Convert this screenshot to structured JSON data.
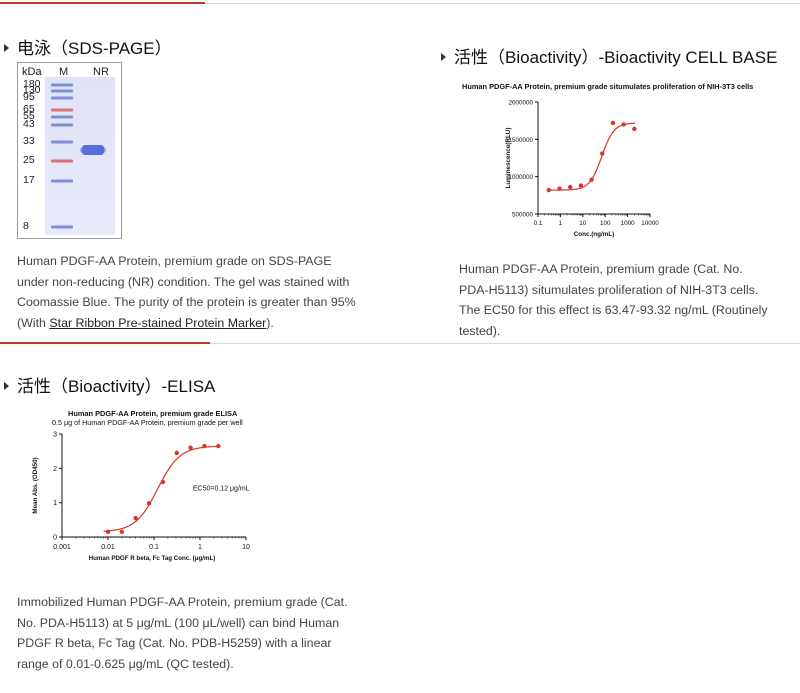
{
  "section1": {
    "title": "电泳（SDS-PAGE）",
    "gel": {
      "header_kda": "kDa",
      "lane_m": "M",
      "lane_nr": "NR",
      "markers": [
        "180",
        "130",
        "95",
        "65",
        "55",
        "43",
        "33",
        "25",
        "17",
        "8"
      ]
    },
    "desc_before_link": "Human PDGF-AA Protein, premium grade on SDS-PAGE under non-reducing (NR) condition. The gel was stained with Coomassie Blue. The purity of the protein is greater than 95% (With ",
    "desc_link": "Star Ribbon Pre-stained Protein Marker",
    "desc_after_link": ")."
  },
  "section2": {
    "title": "活性（Bioactivity）-Bioactivity CELL BASE",
    "desc": "Human PDGF-AA Protein, premium grade (Cat. No. PDA-H5113) situmulates proliferation of NIH-3T3 cells. The EC50 for this effect is 63.47-93.32 ng/mL (Routinely tested)."
  },
  "section3": {
    "title": "活性（Bioactivity）-ELISA",
    "desc": "Immobilized Human PDGF-AA Protein, premium grade (Cat. No. PDA-H5113) at 5 μg/mL (100 μL/well) can bind Human PDGF R beta, Fc Tag (Cat. No. PDB-H5259) with a linear range of 0.01-0.625 μg/mL (QC tested)."
  },
  "colors": {
    "accent_red": "#c0392b",
    "curve_red": "#d9352b",
    "band_blue": "#4a5fd0"
  },
  "chart_data": [
    {
      "type": "scatter",
      "title": "Human PDGF-AA Protein, premium grade situmulates proliferation of NIH-3T3 cells",
      "xlabel": "Conc.(ng/mL)",
      "ylabel": "Luminescence(RLU)",
      "xscale": "log",
      "xlim": [
        0.1,
        10000
      ],
      "ylim": [
        500000,
        2000000
      ],
      "x_ticks": [
        "0.1",
        "1",
        "10",
        "100",
        "1000",
        "10000"
      ],
      "y_ticks": [
        "500000",
        "1000000",
        "1500000",
        "2000000"
      ],
      "series": [
        {
          "x": [
            0.305,
            0.914,
            2.74,
            8.23,
            24.7,
            74.1,
            222,
            667,
            2000
          ],
          "y": [
            820000,
            840000,
            860000,
            880000,
            960000,
            1310000,
            1720000,
            1700000,
            1640000
          ],
          "fit": "sigmoid"
        }
      ]
    },
    {
      "type": "scatter",
      "title": "Human PDGF-AA Protein, premium grade ELISA",
      "subtitle": "0.5 μg of Human PDGF-AA Protein, premium grade per well",
      "xlabel": "Human PDGF R beta, Fc Tag Conc. (μg/mL)",
      "ylabel": "Mean Abs. (OD450)",
      "xscale": "log",
      "xlim": [
        0.001,
        10
      ],
      "ylim": [
        0,
        3
      ],
      "x_ticks": [
        "0.001",
        "0.01",
        "0.1",
        "1",
        "10"
      ],
      "y_ticks": [
        "0",
        "1",
        "2",
        "3"
      ],
      "annotation": "EC50=0.12 μg/mL",
      "series": [
        {
          "x": [
            0.01,
            0.02,
            0.04,
            0.078,
            0.156,
            0.3125,
            0.625,
            1.25,
            2.5
          ],
          "y": [
            0.15,
            0.15,
            0.55,
            0.98,
            1.6,
            2.45,
            2.6,
            2.65,
            2.65
          ],
          "fit": "sigmoid"
        }
      ]
    }
  ]
}
